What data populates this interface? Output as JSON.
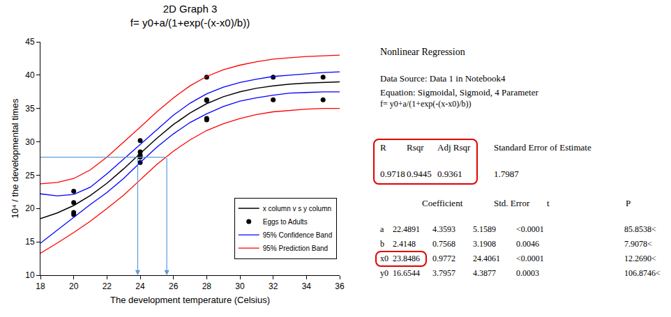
{
  "chart_data": {
    "type": "scatter",
    "title": [
      "2D Graph 3",
      "f= y0+a/(1+exp(-(x-x0)/b))"
    ],
    "x_label": "The development temperature (Celsius)",
    "y_label": "10⁴ / the developmental times",
    "xlim": [
      18,
      36
    ],
    "xticks": [
      18,
      20,
      22,
      24,
      26,
      28,
      30,
      32,
      34,
      36
    ],
    "ylim": [
      10,
      45
    ],
    "yticks": [
      10,
      15,
      20,
      25,
      30,
      35,
      40,
      45
    ],
    "grid": false,
    "legend": "lower right",
    "series": [
      {
        "name": "x column v s y column",
        "type": "line",
        "color": "#000000",
        "line_style": "solid",
        "x": [
          18,
          19,
          20,
          21,
          22,
          23,
          24,
          25,
          26,
          27,
          28,
          29,
          30,
          31,
          32,
          33,
          34,
          35,
          36
        ],
        "values": [
          18.49,
          19.32,
          20.45,
          21.94,
          23.79,
          25.94,
          28.25,
          30.53,
          32.6,
          34.34,
          35.73,
          36.76,
          37.51,
          38.04,
          38.4,
          38.65,
          38.81,
          38.92,
          39.0
        ]
      },
      {
        "name": "Eggs to Adults",
        "type": "scatter",
        "marker": "circle",
        "color": "#000000",
        "x": [
          20,
          20,
          20,
          20,
          24,
          24,
          24,
          24,
          24,
          28,
          28,
          28,
          28,
          28,
          32,
          32,
          35,
          35
        ],
        "values": [
          22.6,
          20.9,
          19.4,
          19.1,
          30.2,
          28.5,
          28.0,
          27.7,
          26.9,
          39.7,
          36.3,
          36.2,
          33.5,
          33.3,
          39.7,
          36.3,
          39.7,
          36.3
        ]
      },
      {
        "name": "95% Confidence Band",
        "type": "band",
        "color": "#0000ff",
        "line_style": "solid",
        "x": [
          18,
          19,
          20,
          21,
          22,
          23,
          24,
          25,
          26,
          27,
          28,
          29,
          30,
          31,
          32,
          33,
          34,
          35,
          36
        ],
        "upper": [
          22.2,
          21.9,
          22.1,
          23.2,
          25.2,
          27.4,
          29.6,
          31.9,
          34.0,
          35.8,
          37.2,
          38.2,
          38.9,
          39.4,
          39.8,
          40.0,
          40.2,
          40.4,
          40.5
        ],
        "lower": [
          14.8,
          16.7,
          18.7,
          20.6,
          22.4,
          24.5,
          26.9,
          29.2,
          31.2,
          32.9,
          34.2,
          35.3,
          36.1,
          36.6,
          37.0,
          37.3,
          37.4,
          37.5,
          37.5
        ]
      },
      {
        "name": "95% Prediction Band",
        "type": "band",
        "color": "#ff0000",
        "line_style": "solid",
        "x": [
          18,
          19,
          20,
          21,
          22,
          23,
          24,
          25,
          26,
          27,
          28,
          29,
          30,
          31,
          32,
          33,
          34,
          35,
          36
        ],
        "upper": [
          23.7,
          23.9,
          24.5,
          25.8,
          27.7,
          29.9,
          32.2,
          34.5,
          36.6,
          38.4,
          39.8,
          40.8,
          41.5,
          42.0,
          42.4,
          42.6,
          42.8,
          42.9,
          43.0
        ],
        "lower": [
          13.3,
          14.8,
          16.4,
          18.1,
          20.0,
          22.0,
          24.3,
          26.6,
          28.6,
          30.3,
          31.7,
          32.7,
          33.5,
          34.1,
          34.5,
          34.7,
          34.9,
          35.0,
          35.0
        ]
      }
    ],
    "guide": {
      "y": 27.7,
      "x": [
        23.85,
        25.6
      ],
      "color": "#5b9bd5"
    }
  },
  "regression_panel": {
    "heading": "Nonlinear Regression",
    "source": "Data Source: Data 1 in Notebook4",
    "equation": "Equation: Sigmoidal, Sigmoid, 4 Parameter",
    "formula": "f= y0+a/(1+exp(-(x-x0)/b))",
    "fit_header": [
      "R",
      "Rsqr",
      "Adj Rsqr"
    ],
    "fit_values": [
      "0.9718",
      "0.9445",
      "0.9361"
    ],
    "se_header": "Standard Error of Estimate",
    "se_value": "1.7987",
    "coef_header": [
      "Coefficient",
      "Std. Error",
      "t",
      "P"
    ],
    "coef_rows": [
      [
        "a",
        "22.4891",
        "4.3593",
        "5.1589",
        "<0.0001",
        "85.8538<"
      ],
      [
        "b",
        "2.4148",
        "0.7568",
        "3.1908",
        "0.0046",
        "7.9078<"
      ],
      [
        "x0",
        "23.8486",
        "0.9772",
        "24.4061",
        "<0.0001",
        "12.2690<"
      ],
      [
        "y0",
        "16.6544",
        "3.7957",
        "4.3877",
        "0.0003",
        "106.8746<"
      ]
    ]
  }
}
